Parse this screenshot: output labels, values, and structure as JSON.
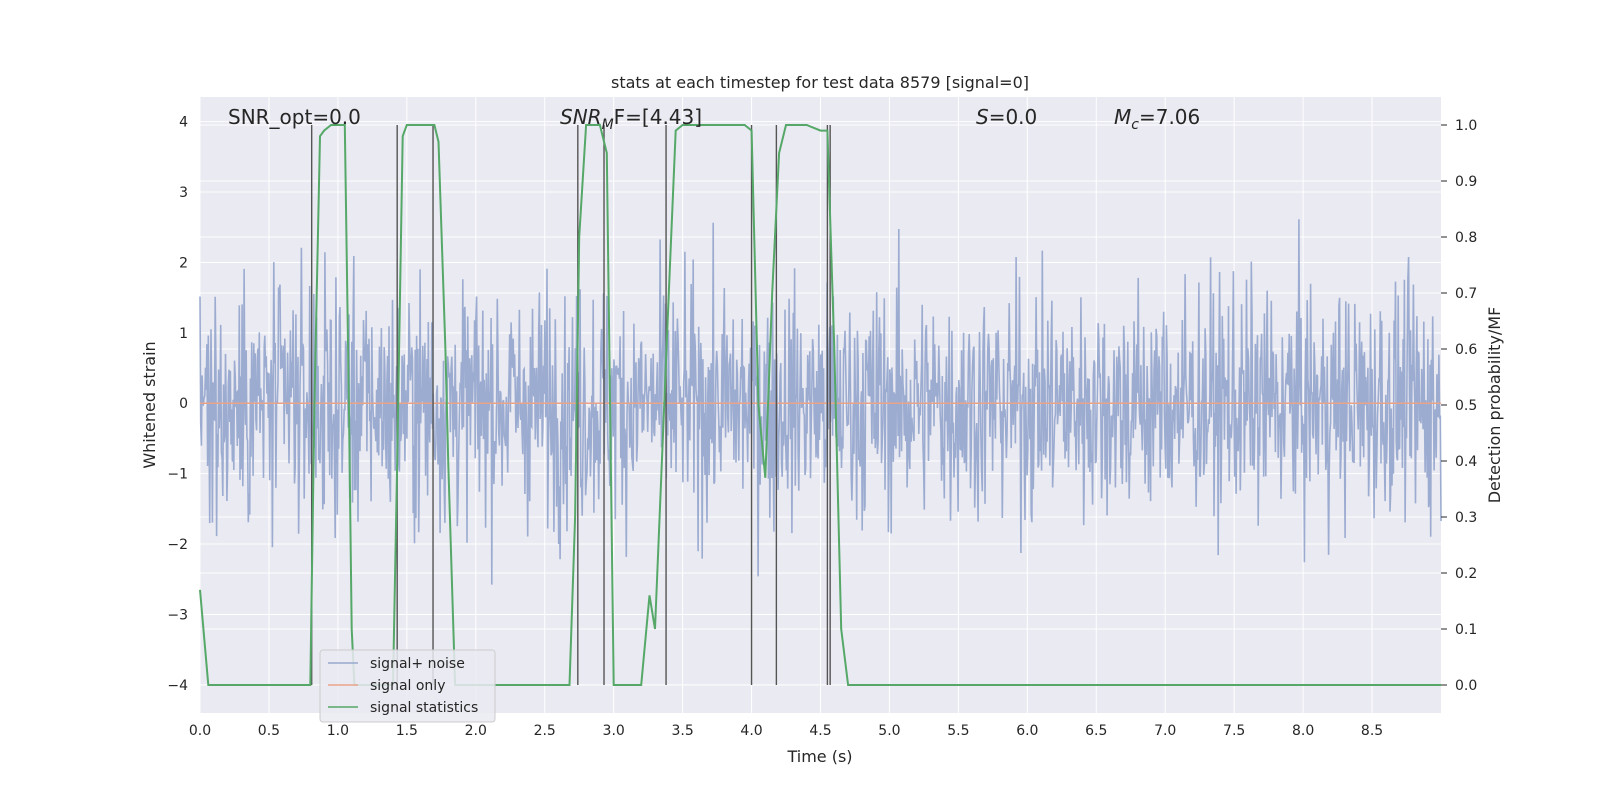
{
  "chart_data": {
    "type": "line",
    "title": "stats at each timestep for test data 8579 [signal=0]",
    "xlabel": "Time (s)",
    "ylabel": "Whitened strain",
    "y2label": "Detection probability/MF",
    "xlim": [
      0,
      9
    ],
    "ylim": [
      -4.4,
      4.35
    ],
    "y2lim": [
      -0.05,
      1.05
    ],
    "grid": true,
    "legend_position": "lower-left",
    "xticks": [
      "0.0",
      "0.5",
      "1.0",
      "1.5",
      "2.0",
      "2.5",
      "3.0",
      "3.5",
      "4.0",
      "4.5",
      "5.0",
      "5.5",
      "6.0",
      "6.5",
      "7.0",
      "7.5",
      "8.0",
      "8.5"
    ],
    "yticks": [
      "4",
      "3",
      "2",
      "1",
      "0",
      "−1",
      "−2",
      "−3",
      "−4"
    ],
    "y2ticks": [
      "1.0",
      "0.9",
      "0.8",
      "0.7",
      "0.6",
      "0.5",
      "0.4",
      "0.3",
      "0.2",
      "0.1",
      "0.0"
    ],
    "annotations": {
      "snr_opt": "SNR_opt=0.0",
      "snr_mf_base": "SNR",
      "snr_mf_sub": "M",
      "snr_mf_rest": "F=[4.43]",
      "s_base": "S",
      "s_rest": "=0.0",
      "mc_base": "M",
      "mc_sub": "c",
      "mc_rest": "=7.06"
    },
    "series": [
      {
        "name": "signal+ noise",
        "color": "#98a9cf",
        "kind": "noise",
        "amplitude_envelope": [
          -3.5,
          3.0
        ],
        "x_range": [
          0,
          9
        ]
      },
      {
        "name": "signal only",
        "color": "#e9a389",
        "kind": "flat",
        "value": 0.0
      },
      {
        "name": "signal statistics",
        "color": "#55a868",
        "axis": "right",
        "x": [
          0.0,
          0.06,
          0.1,
          0.2,
          0.5,
          0.8,
          0.83,
          0.87,
          0.9,
          0.95,
          1.0,
          1.05,
          1.08,
          1.1,
          1.12,
          1.4,
          1.43,
          1.47,
          1.5,
          1.6,
          1.7,
          1.73,
          1.78,
          1.8,
          1.85,
          2.0,
          2.2,
          2.5,
          2.68,
          2.72,
          2.75,
          2.8,
          2.85,
          2.9,
          2.95,
          3.0,
          3.05,
          3.1,
          3.2,
          3.26,
          3.3,
          3.35,
          3.4,
          3.45,
          3.5,
          3.6,
          3.8,
          3.95,
          4.0,
          4.05,
          4.1,
          4.15,
          4.2,
          4.25,
          4.3,
          4.4,
          4.5,
          4.55,
          4.6,
          4.65,
          4.7,
          4.8,
          5.0,
          6.0,
          7.0,
          8.0,
          9.0
        ],
        "y": [
          0.17,
          0.0,
          0.0,
          0.0,
          0.0,
          0.0,
          0.5,
          0.98,
          0.99,
          1.0,
          1.0,
          1.0,
          0.5,
          0.1,
          0.0,
          0.0,
          0.4,
          0.98,
          1.0,
          1.0,
          1.0,
          0.97,
          0.6,
          0.4,
          0.0,
          0.0,
          0.0,
          0.0,
          0.0,
          0.3,
          0.8,
          1.0,
          1.0,
          1.0,
          0.95,
          0.0,
          0.0,
          0.0,
          0.0,
          0.16,
          0.1,
          0.4,
          0.7,
          0.99,
          1.0,
          1.0,
          1.0,
          1.0,
          0.99,
          0.5,
          0.37,
          0.7,
          0.95,
          1.0,
          1.0,
          1.0,
          0.99,
          0.99,
          0.6,
          0.1,
          0.0,
          0.0,
          0.0,
          0.0,
          0.0,
          0.0,
          0.0
        ]
      },
      {
        "name": "markers",
        "color": "#555555",
        "kind": "vlines",
        "x": [
          0.81,
          1.43,
          1.69,
          2.74,
          2.93,
          3.38,
          4.0,
          4.18,
          4.55,
          4.57
        ],
        "top_value": 1.0
      }
    ]
  }
}
